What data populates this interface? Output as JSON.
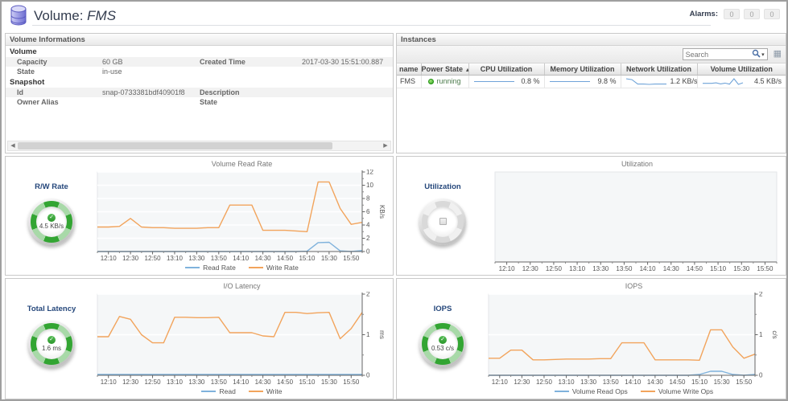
{
  "header": {
    "title_prefix": "Volume:",
    "title_name": "FMS",
    "alarms_label": "Alarms:",
    "alarm_counts": [
      "0",
      "0",
      "0"
    ]
  },
  "volume_info": {
    "panel_title": "Volume Informations",
    "sections": [
      {
        "title": "Volume",
        "rows": [
          {
            "l1": "Capacity",
            "v1": "60 GB",
            "l2": "Created Time",
            "v2": "2017-03-30 15:51:00.887"
          },
          {
            "l1": "State",
            "v1": "in-use",
            "l2": "",
            "v2": ""
          }
        ]
      },
      {
        "title": "Snapshot",
        "rows": [
          {
            "l1": "Id",
            "v1": "snap-0733381bdf40901f8",
            "l2": "Description",
            "v2": ""
          },
          {
            "l1": "Owner Alias",
            "v1": "",
            "l2": "State",
            "v2": ""
          }
        ]
      }
    ]
  },
  "instances": {
    "panel_title": "Instances",
    "search_placeholder": "Search",
    "columns": [
      "name",
      "Power State",
      "CPU Utilization",
      "Memory Utilization",
      "Network Utilization",
      "Volume Utilization"
    ],
    "sorted_column": "Power State",
    "rows": [
      {
        "name": "FMS",
        "power_state": "running",
        "cpu_value": "0.8 %",
        "memory_value": "9.8 %",
        "network_value": "1.2 KB/s",
        "volume_value": "4.5 KB/s",
        "cpu_spark": [
          0.8,
          0.8,
          0.8,
          0.8,
          0.8,
          0.8,
          0.8,
          0.8
        ],
        "memory_spark": [
          9.8,
          9.8,
          9.8,
          9.8,
          9.8,
          9.8,
          9.8,
          9.8
        ],
        "network_spark": [
          1.5,
          1.45,
          1.2,
          1.2,
          1.18,
          1.2,
          1.2,
          1.2
        ],
        "volume_spark": [
          4,
          4,
          4,
          4.4,
          3.5,
          4.2,
          3.3,
          8,
          3.1,
          4.5
        ]
      }
    ]
  },
  "gauges": [
    {
      "label": "R/W Rate",
      "value": "4.5 KB/s",
      "state": "normal"
    },
    {
      "label": "Utilization",
      "value": "",
      "state": "unknown"
    },
    {
      "label": "Total Latency",
      "value": "1.6 ms",
      "state": "normal"
    },
    {
      "label": "IOPS",
      "value": "0.53 c/s",
      "state": "normal"
    }
  ],
  "colors": {
    "read_blue": "#7fb2dc",
    "write_orange": "#f2a45c",
    "gauge_green": "#33a533",
    "status_green": "#2fa01e",
    "spark_blue": "#6fa3d8"
  },
  "chart_data": [
    {
      "id": "volume_read_rate",
      "type": "line",
      "title": "Volume Read Rate",
      "xlabel": "",
      "ylabel": "KB/s",
      "ylim": [
        0,
        12
      ],
      "y_ticks": [
        0,
        2,
        4,
        6,
        8,
        10,
        12
      ],
      "x_tick_labels": [
        "12:10",
        "12:30",
        "12:50",
        "13:10",
        "13:30",
        "13:50",
        "14:10",
        "14:30",
        "14:50",
        "15:10",
        "15:30",
        "15:50"
      ],
      "grid": true,
      "legend_position": "bottom",
      "series": [
        {
          "name": "Read Rate",
          "color": "#7fb2dc",
          "values": [
            0,
            0,
            0,
            0,
            0,
            0,
            0,
            0,
            0,
            0,
            0,
            0,
            0,
            0,
            0,
            0,
            0,
            0,
            0,
            0.05,
            1.35,
            1.4,
            0.1,
            0,
            0.15
          ]
        },
        {
          "name": "Write Rate",
          "color": "#f2a45c",
          "values": [
            3.7,
            3.7,
            3.8,
            5.0,
            3.7,
            3.6,
            3.6,
            3.5,
            3.5,
            3.5,
            3.6,
            3.6,
            7.0,
            7.0,
            7.0,
            3.2,
            3.2,
            3.2,
            3.1,
            3.0,
            10.5,
            10.5,
            6.5,
            4.1,
            4.4
          ]
        }
      ]
    },
    {
      "id": "utilization",
      "type": "line",
      "title": "Utilization",
      "xlabel": "",
      "ylabel": "",
      "ylim": [
        0,
        1
      ],
      "y_ticks": [],
      "x_tick_labels": [
        "12:10",
        "12:30",
        "12:50",
        "13:10",
        "13:30",
        "13:50",
        "14:10",
        "14:30",
        "14:50",
        "15:10",
        "15:30",
        "15:50"
      ],
      "grid": false,
      "legend_position": "none",
      "series": []
    },
    {
      "id": "io_latency",
      "type": "line",
      "title": "I/O Latency",
      "xlabel": "",
      "ylabel": "ms",
      "ylim": [
        0,
        2
      ],
      "y_ticks": [
        0,
        1,
        2
      ],
      "x_tick_labels": [
        "12:10",
        "12:30",
        "12:50",
        "13:10",
        "13:30",
        "13:50",
        "14:10",
        "14:30",
        "14:50",
        "15:10",
        "15:30",
        "15:50"
      ],
      "grid": true,
      "legend_position": "bottom",
      "series": [
        {
          "name": "Read",
          "color": "#7fb2dc",
          "values": [
            0.02,
            0.02,
            0.02,
            0.02,
            0.02,
            0.02,
            0.02,
            0.02,
            0.02,
            0.02,
            0.02,
            0.02,
            0.02,
            0.02,
            0.02,
            0.02,
            0.02,
            0.02,
            0.02,
            0.02,
            0.02,
            0.02,
            0.02,
            0.02,
            0.02
          ]
        },
        {
          "name": "Write",
          "color": "#f2a45c",
          "values": [
            0.95,
            0.95,
            1.45,
            1.38,
            1.0,
            0.8,
            0.8,
            1.43,
            1.43,
            1.42,
            1.42,
            1.43,
            1.05,
            1.05,
            1.05,
            0.97,
            0.95,
            1.55,
            1.55,
            1.52,
            1.54,
            1.55,
            0.9,
            1.15,
            1.55
          ]
        }
      ]
    },
    {
      "id": "iops",
      "type": "line",
      "title": "IOPS",
      "xlabel": "",
      "ylabel": "c/s",
      "ylim": [
        0,
        2
      ],
      "y_ticks": [
        0,
        1,
        2
      ],
      "x_tick_labels": [
        "12:10",
        "12:30",
        "12:50",
        "13:10",
        "13:30",
        "13:50",
        "14:10",
        "14:30",
        "14:50",
        "15:10",
        "15:30",
        "15:50"
      ],
      "grid": true,
      "legend_position": "bottom",
      "series": [
        {
          "name": "Volume Read Ops",
          "color": "#7fb2dc",
          "values": [
            0,
            0,
            0,
            0,
            0,
            0,
            0,
            0,
            0,
            0,
            0,
            0,
            0,
            0,
            0,
            0,
            0,
            0,
            0,
            0.02,
            0.1,
            0.1,
            0.02,
            0,
            0.02
          ]
        },
        {
          "name": "Volume Write Ops",
          "color": "#f2a45c",
          "values": [
            0.42,
            0.42,
            0.62,
            0.62,
            0.38,
            0.38,
            0.39,
            0.4,
            0.4,
            0.4,
            0.41,
            0.41,
            0.8,
            0.8,
            0.8,
            0.38,
            0.38,
            0.38,
            0.38,
            0.37,
            1.12,
            1.12,
            0.7,
            0.42,
            0.52
          ]
        }
      ]
    }
  ]
}
